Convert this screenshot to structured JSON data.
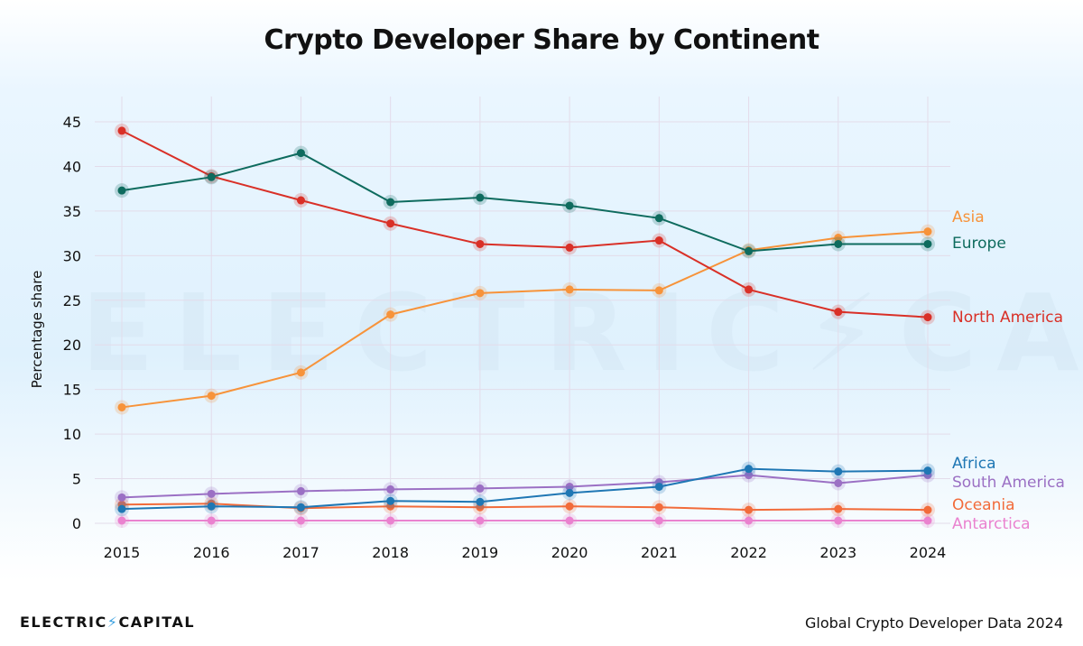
{
  "title": "Crypto Developer Share by Continent",
  "footer": {
    "brand_left": "ELECTRIC",
    "brand_bolt": "⚡",
    "brand_right": "CAPITAL",
    "source": "Global Crypto Developer Data 2024"
  },
  "watermark": "ELECTRIC⚡CAPITAL",
  "chart_data": {
    "type": "line",
    "title": "Crypto Developer Share by Continent",
    "xlabel": "",
    "ylabel": "Percentage share",
    "x": [
      2015,
      2016,
      2017,
      2018,
      2019,
      2020,
      2021,
      2022,
      2023,
      2024
    ],
    "ylim": [
      0,
      45
    ],
    "yticks": [
      0,
      5,
      10,
      15,
      20,
      25,
      30,
      35,
      40,
      45
    ],
    "grid": true,
    "legend": "inline-right",
    "series": [
      {
        "name": "North America",
        "color": "#d93027",
        "values": [
          44.0,
          38.9,
          36.2,
          33.6,
          31.3,
          30.9,
          31.7,
          26.2,
          23.7,
          23.1
        ]
      },
      {
        "name": "Europe",
        "color": "#0e6b5e",
        "values": [
          37.3,
          38.8,
          41.5,
          36.0,
          36.5,
          35.6,
          34.2,
          30.5,
          31.3,
          31.3
        ]
      },
      {
        "name": "Asia",
        "color": "#f7933a",
        "values": [
          13.0,
          14.3,
          16.9,
          23.4,
          25.8,
          26.2,
          26.1,
          30.6,
          32.0,
          32.7
        ]
      },
      {
        "name": "Africa",
        "color": "#1f77b4",
        "values": [
          1.6,
          1.9,
          1.8,
          2.5,
          2.4,
          3.4,
          4.1,
          6.1,
          5.8,
          5.9
        ]
      },
      {
        "name": "South America",
        "color": "#9b70c4",
        "values": [
          2.9,
          3.3,
          3.6,
          3.8,
          3.9,
          4.1,
          4.6,
          5.4,
          4.5,
          5.4
        ]
      },
      {
        "name": "Oceania",
        "color": "#f26b3a",
        "values": [
          2.1,
          2.2,
          1.7,
          1.9,
          1.8,
          1.9,
          1.8,
          1.5,
          1.6,
          1.5
        ]
      },
      {
        "name": "Antarctica",
        "color": "#ea82cf",
        "values": [
          0.3,
          0.3,
          0.3,
          0.3,
          0.3,
          0.3,
          0.3,
          0.3,
          0.3,
          0.3
        ]
      }
    ]
  }
}
